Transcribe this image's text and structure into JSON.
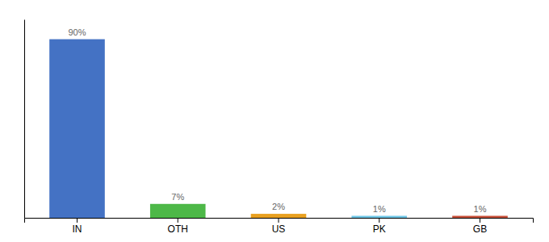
{
  "chart_data": {
    "type": "bar",
    "categories": [
      "IN",
      "OTH",
      "US",
      "PK",
      "GB"
    ],
    "values": [
      90,
      7,
      2,
      1,
      1
    ],
    "value_labels": [
      "90%",
      "7%",
      "2%",
      "1%",
      "1%"
    ],
    "data_labels": true,
    "colors": [
      "#4472c4",
      "#4db848",
      "#e8a020",
      "#70c8e8",
      "#c8503a"
    ],
    "ylim": [
      0,
      100
    ],
    "tick_labels": "x"
  }
}
